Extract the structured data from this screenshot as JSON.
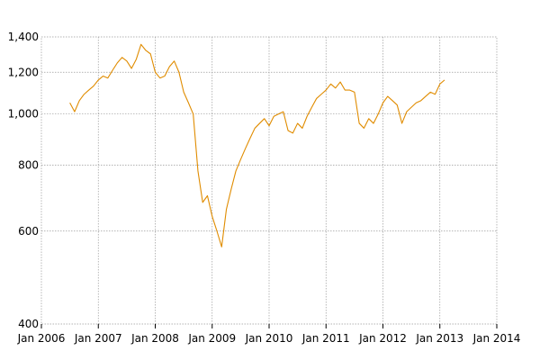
{
  "chart_data": {
    "type": "line",
    "title": "",
    "xlabel": "",
    "ylabel": "",
    "y_scale": "log",
    "ylim": [
      400,
      1400
    ],
    "xlim": [
      "2006-01",
      "2014-01"
    ],
    "grid": true,
    "legend": "none",
    "colors": {
      "series": "#e08c00",
      "grid": "#9a9a9a",
      "text": "#000000"
    },
    "x_ticks": [
      {
        "label": "Jan 2006",
        "value": "2006-01"
      },
      {
        "label": "Jan 2007",
        "value": "2007-01"
      },
      {
        "label": "Jan 2008",
        "value": "2008-01"
      },
      {
        "label": "Jan 2009",
        "value": "2009-01"
      },
      {
        "label": "Jan 2010",
        "value": "2010-01"
      },
      {
        "label": "Jan 2011",
        "value": "2011-01"
      },
      {
        "label": "Jan 2012",
        "value": "2012-01"
      },
      {
        "label": "Jan 2013",
        "value": "2013-01"
      },
      {
        "label": "Jan 2014",
        "value": "2014-01"
      }
    ],
    "y_ticks": [
      {
        "label": "400",
        "value": 400
      },
      {
        "label": "600",
        "value": 600
      },
      {
        "label": "800",
        "value": 800
      },
      {
        "label": "1,000",
        "value": 1000
      },
      {
        "label": "1,200",
        "value": 1200
      },
      {
        "label": "1,400",
        "value": 1400
      }
    ],
    "series": [
      {
        "x": [
          "2006-07",
          "2006-08",
          "2006-09",
          "2006-10",
          "2006-11",
          "2006-12",
          "2007-01",
          "2007-02",
          "2007-03",
          "2007-04",
          "2007-05",
          "2007-06",
          "2007-07",
          "2007-08",
          "2007-09",
          "2007-10",
          "2007-11",
          "2007-12",
          "2008-01",
          "2008-02",
          "2008-03",
          "2008-04",
          "2008-05",
          "2008-06",
          "2008-07",
          "2008-08",
          "2008-09",
          "2008-10",
          "2008-11",
          "2008-12",
          "2009-01",
          "2009-02",
          "2009-03",
          "2009-04",
          "2009-05",
          "2009-06",
          "2009-07",
          "2009-08",
          "2009-09",
          "2009-10",
          "2009-11",
          "2009-12",
          "2010-01",
          "2010-02",
          "2010-03",
          "2010-04",
          "2010-05",
          "2010-06",
          "2010-07",
          "2010-08",
          "2010-09",
          "2010-10",
          "2010-11",
          "2010-12",
          "2011-01",
          "2011-02",
          "2011-03",
          "2011-04",
          "2011-05",
          "2011-06",
          "2011-07",
          "2011-08",
          "2011-09",
          "2011-10",
          "2011-11",
          "2011-12",
          "2012-01",
          "2012-02",
          "2012-03",
          "2012-04",
          "2012-05",
          "2012-06",
          "2012-07",
          "2012-08",
          "2012-09",
          "2012-10",
          "2012-11",
          "2012-12",
          "2013-01",
          "2013-02"
        ],
        "y": [
          1050,
          1010,
          1060,
          1090,
          1110,
          1130,
          1160,
          1180,
          1170,
          1210,
          1250,
          1280,
          1260,
          1220,
          1270,
          1355,
          1320,
          1300,
          1200,
          1170,
          1180,
          1230,
          1260,
          1200,
          1100,
          1050,
          1000,
          780,
          680,
          700,
          640,
          600,
          560,
          660,
          720,
          780,
          820,
          860,
          900,
          940,
          960,
          980,
          950,
          990,
          1000,
          1010,
          930,
          920,
          960,
          940,
          990,
          1030,
          1070,
          1090,
          1110,
          1140,
          1120,
          1150,
          1110,
          1110,
          1100,
          960,
          940,
          980,
          960,
          1000,
          1050,
          1080,
          1060,
          1040,
          960,
          1010,
          1030,
          1050,
          1060,
          1080,
          1100,
          1090,
          1140,
          1160
        ]
      }
    ]
  }
}
